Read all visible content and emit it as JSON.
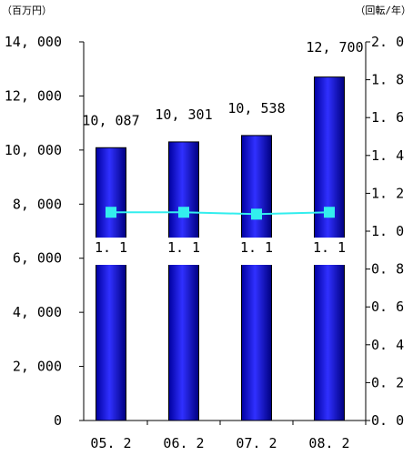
{
  "chart_data": {
    "type": "bar+line",
    "categories": [
      "05.2",
      "06.2",
      "07.2",
      "08.2"
    ],
    "x_tick_labels": [
      "05. 2",
      "06. 2",
      "07. 2",
      "08. 2"
    ],
    "series": [
      {
        "type": "bar",
        "axis": "left",
        "values": [
          10087,
          10301,
          10538,
          12700
        ],
        "data_labels": [
          "10, 087",
          "10, 301",
          "10, 538",
          "12, 700"
        ],
        "color": "#1010e0"
      },
      {
        "type": "line",
        "axis": "right",
        "values": [
          1.1,
          1.1,
          1.09,
          1.1
        ],
        "data_labels": [
          "1. 1",
          "1. 1",
          "1. 1",
          "1. 1"
        ],
        "color": "#33eeee"
      }
    ],
    "y_left": {
      "unit_label": "（百万円）",
      "range": [
        0,
        14000
      ],
      "tick_values": [
        0,
        2000,
        4000,
        6000,
        8000,
        10000,
        12000,
        14000
      ],
      "tick_labels": [
        "0",
        "2, 000",
        "4, 000",
        "6, 000",
        "8, 000",
        "10, 000",
        "12, 000",
        "14, 000"
      ]
    },
    "y_right": {
      "unit_label": "（回転/年）",
      "range": [
        0,
        2.0
      ],
      "tick_values": [
        0,
        0.2,
        0.4,
        0.6,
        0.8,
        1.0,
        1.2,
        1.4,
        1.6,
        1.8,
        2.0
      ],
      "tick_labels": [
        "0. 0",
        "0. 2",
        "0. 4",
        "0. 6",
        "0. 8",
        "1. 0",
        "1. 2",
        "1. 4",
        "1. 6",
        "1. 8",
        "2. 0"
      ]
    },
    "grid": false,
    "legend": "none"
  }
}
